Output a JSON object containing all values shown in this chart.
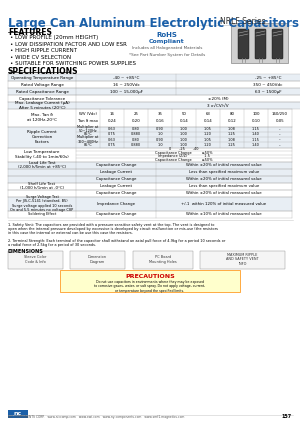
{
  "title": "Large Can Aluminum Electrolytic Capacitors",
  "series": "NRLF Series",
  "background": "#ffffff",
  "header_blue": "#1a5fa8",
  "features": [
    "LOW PROFILE (20mm HEIGHT)",
    "LOW DISSIPATION FACTOR AND LOW ESR",
    "HIGH RIPPLE CURRENT",
    "WIDE CV SELECTION",
    "SUITABLE FOR SWITCHING POWER SUPPLIES"
  ],
  "rohs_text": "RoHS\nCompliant",
  "part_note": "*See Part Number System for Details",
  "specs_title": "SPECIFICATIONS"
}
